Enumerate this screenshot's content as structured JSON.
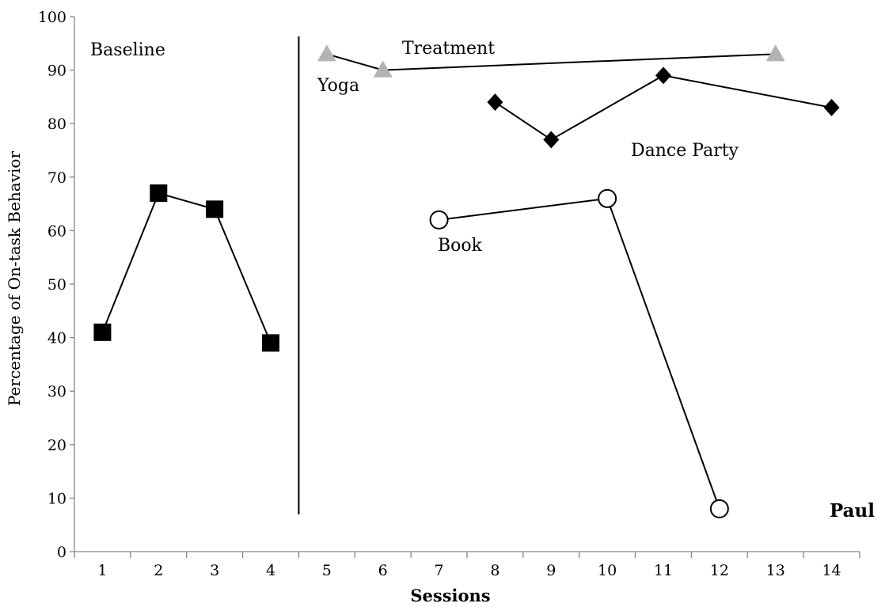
{
  "chart_data": {
    "type": "line",
    "ylabel": "Percentage of On-task Behavior",
    "xlabel": "Sessions",
    "participant": "Paul",
    "ylim": [
      0,
      100
    ],
    "yticks": [
      0,
      10,
      20,
      30,
      40,
      50,
      60,
      70,
      80,
      90,
      100
    ],
    "x_categories": [
      "1",
      "2",
      "3",
      "4",
      "5",
      "6",
      "7",
      "8",
      "9",
      "10",
      "11",
      "12",
      "13",
      "14"
    ],
    "phases": [
      {
        "label": "Baseline"
      },
      {
        "label": "Treatment"
      }
    ],
    "phase_change_after_session": 4,
    "series": [
      {
        "name": "Baseline",
        "marker": "square",
        "color": "#000000",
        "points": [
          {
            "x": 1,
            "y": 41
          },
          {
            "x": 2,
            "y": 67
          },
          {
            "x": 3,
            "y": 64
          },
          {
            "x": 4,
            "y": 39
          }
        ]
      },
      {
        "name": "Yoga",
        "marker": "triangle",
        "color": "#b3b3b3",
        "points": [
          {
            "x": 5,
            "y": 93
          },
          {
            "x": 6,
            "y": 90
          },
          {
            "x": 13,
            "y": 93
          }
        ]
      },
      {
        "name": "Dance Party",
        "marker": "diamond",
        "color": "#000000",
        "points": [
          {
            "x": 8,
            "y": 84
          },
          {
            "x": 9,
            "y": 77
          },
          {
            "x": 11,
            "y": 89
          },
          {
            "x": 14,
            "y": 83
          }
        ]
      },
      {
        "name": "Book",
        "marker": "circle-open",
        "color": "#000000",
        "points": [
          {
            "x": 7,
            "y": 62
          },
          {
            "x": 10,
            "y": 66
          },
          {
            "x": 12,
            "y": 8
          }
        ]
      }
    ],
    "grid": false,
    "legend": "none"
  }
}
